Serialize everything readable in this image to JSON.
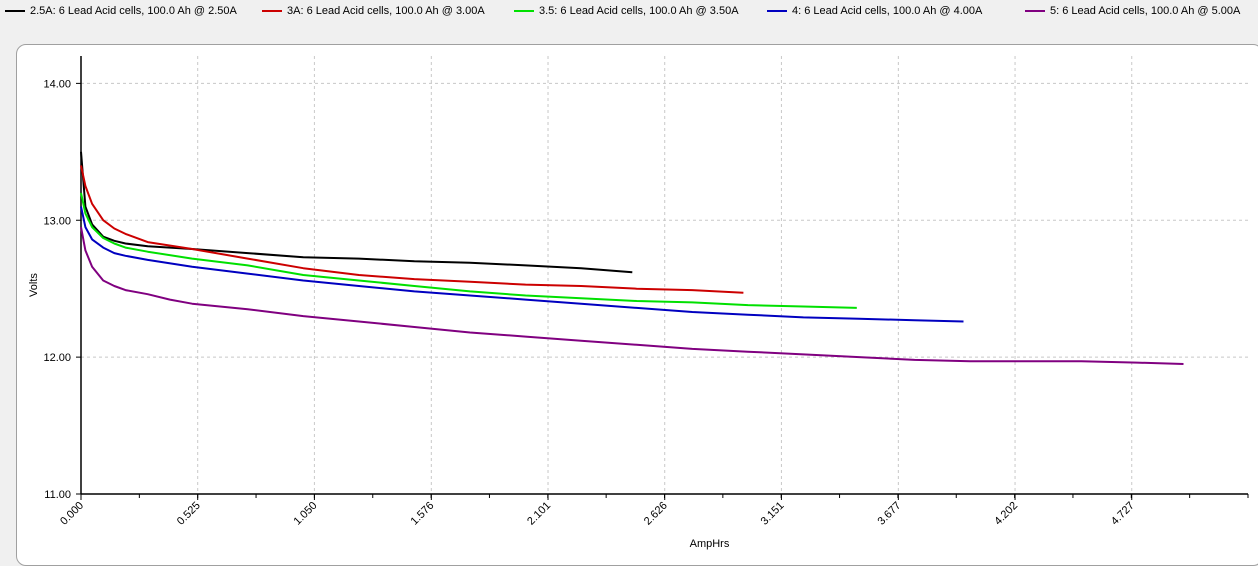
{
  "chart_data": {
    "type": "line",
    "xlabel": "AmpHrs",
    "ylabel": "Volts",
    "xlim": [
      0,
      5.25
    ],
    "ylim": [
      11,
      14.2
    ],
    "x_ticks": [
      "0.000",
      "0.525",
      "1.050",
      "1.576",
      "2.101",
      "2.626",
      "3.151",
      "3.677",
      "4.202",
      "4.727"
    ],
    "x_tick_values": [
      0,
      0.525,
      1.05,
      1.576,
      2.101,
      2.626,
      3.151,
      3.677,
      4.202,
      4.727
    ],
    "y_ticks": [
      "11.00",
      "12.00",
      "13.00",
      "14.00"
    ],
    "y_tick_values": [
      11,
      12,
      13,
      14
    ],
    "grid": true,
    "legend_position": "top",
    "series": [
      {
        "name": "2.5A: 6 Lead Acid cells, 100.0 Ah @ 2.50A",
        "color": "#000000",
        "x": [
          0,
          0.02,
          0.05,
          0.1,
          0.15,
          0.2,
          0.3,
          0.5,
          0.75,
          1.0,
          1.25,
          1.5,
          1.75,
          2.0,
          2.25,
          2.48
        ],
        "y": [
          13.5,
          13.1,
          12.97,
          12.88,
          12.85,
          12.83,
          12.81,
          12.79,
          12.76,
          12.73,
          12.72,
          12.7,
          12.69,
          12.67,
          12.65,
          12.62
        ]
      },
      {
        "name": "3A: 6 Lead Acid cells, 100.0 Ah @ 3.00A",
        "color": "#cc0000",
        "x": [
          0,
          0.02,
          0.05,
          0.1,
          0.15,
          0.2,
          0.3,
          0.5,
          0.75,
          1.0,
          1.25,
          1.5,
          1.75,
          2.0,
          2.25,
          2.5,
          2.75,
          2.98
        ],
        "y": [
          13.4,
          13.25,
          13.12,
          13.0,
          12.94,
          12.9,
          12.84,
          12.79,
          12.72,
          12.65,
          12.6,
          12.57,
          12.55,
          12.53,
          12.52,
          12.5,
          12.49,
          12.47
        ]
      },
      {
        "name": "3.5: 6 Lead Acid cells, 100.0 Ah @ 3.50A",
        "color": "#00e000",
        "x": [
          0,
          0.02,
          0.05,
          0.1,
          0.15,
          0.2,
          0.3,
          0.5,
          0.75,
          1.0,
          1.25,
          1.5,
          1.75,
          2.0,
          2.25,
          2.5,
          2.75,
          3.0,
          3.25,
          3.49
        ],
        "y": [
          13.2,
          13.05,
          12.95,
          12.87,
          12.83,
          12.8,
          12.77,
          12.72,
          12.67,
          12.6,
          12.56,
          12.52,
          12.48,
          12.45,
          12.43,
          12.41,
          12.4,
          12.38,
          12.37,
          12.36
        ]
      },
      {
        "name": "4: 6 Lead Acid cells, 100.0 Ah @ 4.00A",
        "color": "#0000c0",
        "x": [
          0,
          0.02,
          0.05,
          0.1,
          0.15,
          0.2,
          0.3,
          0.5,
          0.75,
          1.0,
          1.25,
          1.5,
          1.75,
          2.0,
          2.25,
          2.5,
          2.75,
          3.0,
          3.25,
          3.5,
          3.75,
          3.97
        ],
        "y": [
          13.1,
          12.95,
          12.86,
          12.8,
          12.76,
          12.74,
          12.71,
          12.66,
          12.61,
          12.56,
          12.52,
          12.48,
          12.45,
          12.42,
          12.39,
          12.36,
          12.33,
          12.31,
          12.29,
          12.28,
          12.27,
          12.26
        ]
      },
      {
        "name": "5: 6 Lead Acid cells, 100.0 Ah @ 5.00A",
        "color": "#800080",
        "x": [
          0,
          0.02,
          0.05,
          0.1,
          0.15,
          0.2,
          0.3,
          0.4,
          0.5,
          0.75,
          1.0,
          1.25,
          1.5,
          1.75,
          2.0,
          2.25,
          2.5,
          2.75,
          3.0,
          3.25,
          3.5,
          3.75,
          4.0,
          4.25,
          4.5,
          4.75,
          4.96
        ],
        "y": [
          12.95,
          12.78,
          12.66,
          12.56,
          12.52,
          12.49,
          12.46,
          12.42,
          12.39,
          12.35,
          12.3,
          12.26,
          12.22,
          12.18,
          12.15,
          12.12,
          12.09,
          12.06,
          12.04,
          12.02,
          12.0,
          11.98,
          11.97,
          11.97,
          11.97,
          11.96,
          11.95
        ]
      }
    ]
  }
}
